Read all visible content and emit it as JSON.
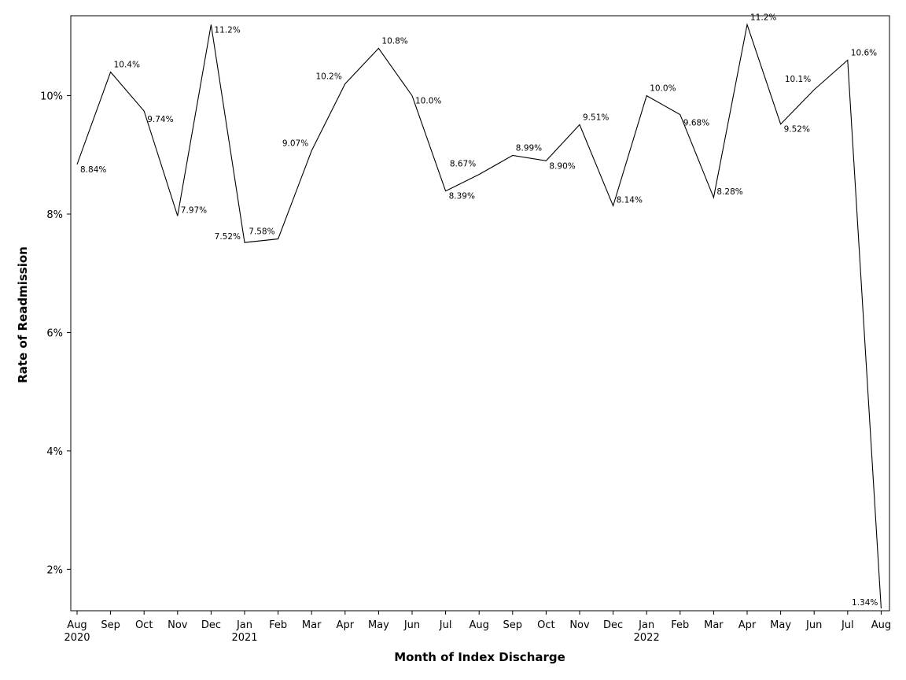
{
  "chart_data": {
    "type": "line",
    "xlabel": "Month of Index Discharge",
    "ylabel": "Rate of Readmission",
    "ylim": [
      1.3,
      11.35
    ],
    "y_ticks": [
      "2%",
      "4%",
      "6%",
      "8%",
      "10%"
    ],
    "y_tick_values": [
      2,
      4,
      6,
      8,
      10
    ],
    "grid": false,
    "line_color": "#000000",
    "x_month_labels": [
      "Aug",
      "Sep",
      "Oct",
      "Nov",
      "Dec",
      "Jan",
      "Feb",
      "Mar",
      "Apr",
      "May",
      "Jun",
      "Jul",
      "Aug",
      "Sep",
      "Oct",
      "Nov",
      "Dec",
      "Jan",
      "Feb",
      "Mar",
      "Apr",
      "May",
      "Jun",
      "Jul",
      "Aug"
    ],
    "x_year_labels": [
      {
        "index": 0,
        "label": "2020"
      },
      {
        "index": 5,
        "label": "2021"
      },
      {
        "index": 17,
        "label": "2022"
      }
    ],
    "series": [
      {
        "values": [
          8.84,
          10.4,
          9.74,
          7.97,
          11.2,
          7.52,
          7.58,
          9.07,
          10.2,
          10.8,
          10.0,
          8.39,
          8.67,
          8.99,
          8.9,
          9.51,
          8.14,
          10.0,
          9.68,
          8.28,
          11.2,
          9.52,
          10.1,
          10.6,
          1.34
        ],
        "labels": [
          "8.84%",
          "10.4%",
          "9.74%",
          "7.97%",
          "11.2%",
          "7.52%",
          "7.58%",
          "9.07%",
          "10.2%",
          "10.8%",
          "10.0%",
          "8.39%",
          "8.67%",
          "8.99%",
          "8.90%",
          "9.51%",
          "8.14%",
          "10.0%",
          "9.68%",
          "8.28%",
          "11.2%",
          "9.52%",
          "10.1%",
          "10.6%",
          "1.34%"
        ]
      }
    ]
  }
}
